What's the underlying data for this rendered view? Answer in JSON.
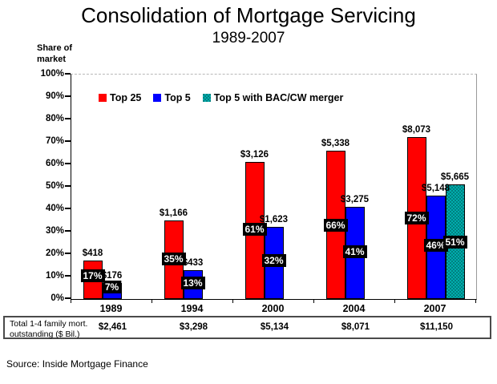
{
  "title": "Consolidation of Mortgage Servicing",
  "subtitle": "1989-2007",
  "y_axis_label": [
    "Share of",
    "market"
  ],
  "source": "Source: Inside Mortgage Finance",
  "colors": {
    "top25": "#ff0000",
    "top5": "#0000ff",
    "merger": "#008080",
    "merger_light": "#00adad"
  },
  "legend": [
    {
      "key": "top25",
      "label": "Top 25"
    },
    {
      "key": "top5",
      "label": "Top 5"
    },
    {
      "key": "merger",
      "label": "Top 5 with BAC/CW merger"
    }
  ],
  "chart_data": {
    "type": "bar",
    "title": "Consolidation of Mortgage Servicing",
    "subtitle": "1989-2007",
    "ylabel": "Share of market",
    "xlabel": "",
    "ylim": [
      0,
      100
    ],
    "y_ticks": [
      "0%",
      "10%",
      "20%",
      "30%",
      "40%",
      "50%",
      "60%",
      "70%",
      "80%",
      "90%",
      "100%"
    ],
    "grid": false,
    "legend_position": "top-left-inside",
    "categories": [
      "1989",
      "1994",
      "2000",
      "2004",
      "2007"
    ],
    "series": [
      {
        "key": "top25",
        "name": "Top 25",
        "pct": [
          17,
          35,
          61,
          66,
          72
        ],
        "pct_labels": [
          "17%",
          "35%",
          "61%",
          "66%",
          "72%"
        ],
        "dollar_labels": [
          "$418",
          "$1,166",
          "$3,126",
          "$5,338",
          "$8,073"
        ],
        "pct_label_center_pos": [
          10.5,
          18,
          31,
          33,
          36
        ]
      },
      {
        "key": "top5",
        "name": "Top 5",
        "pct": [
          7,
          13,
          32,
          41,
          46
        ],
        "pct_labels": [
          "7%",
          "13%",
          "32%",
          "41%",
          "46%"
        ],
        "dollar_labels": [
          "$176",
          "$433",
          "$1,623",
          "$3,275",
          "$5,148"
        ],
        "pct_label_center_pos": [
          5.5,
          7,
          17,
          21,
          24
        ]
      },
      {
        "key": "merger",
        "name": "Top 5 with BAC/CW merger",
        "pct": [
          null,
          null,
          null,
          null,
          51
        ],
        "pct_labels": [
          null,
          null,
          null,
          null,
          "51%"
        ],
        "dollar_labels": [
          null,
          null,
          null,
          null,
          "$5,665"
        ],
        "pct_label_center_pos": [
          null,
          null,
          null,
          null,
          25.5
        ]
      }
    ]
  },
  "table": {
    "label_lines": [
      "Total 1-4 family mort.",
      "outstanding ($ Bil.)"
    ],
    "values": [
      "$2,461",
      "$3,298",
      "$5,134",
      "$8,071",
      "$11,150"
    ]
  }
}
